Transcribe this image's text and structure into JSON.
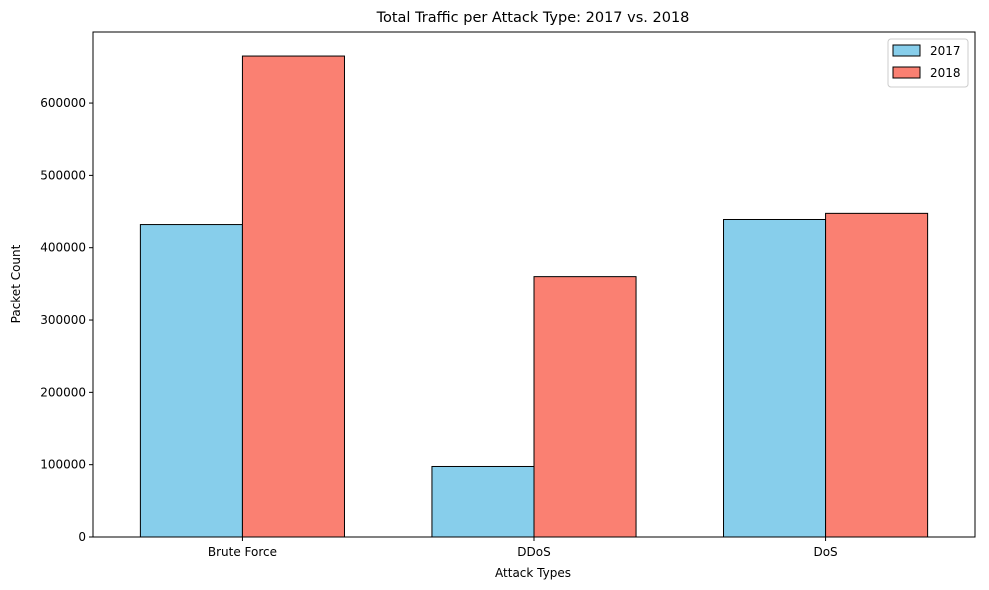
{
  "chart_data": {
    "type": "bar",
    "title": "Total Traffic per Attack Type: 2017 vs. 2018",
    "xlabel": "Attack Types",
    "ylabel": "Packet Count",
    "categories": [
      "Brute Force",
      "DDoS",
      "DoS"
    ],
    "series": [
      {
        "name": "2017",
        "color": "#87ceeb",
        "values": [
          432000,
          97500,
          439000
        ]
      },
      {
        "name": "2018",
        "color": "#fa8072",
        "values": [
          665000,
          360000,
          447500
        ]
      }
    ],
    "ylim": [
      0,
      698250
    ],
    "yticks": [
      0,
      100000,
      200000,
      300000,
      400000,
      500000,
      600000
    ],
    "ytick_labels": [
      "0",
      "100000",
      "200000",
      "300000",
      "400000",
      "500000",
      "600000"
    ],
    "grid": false,
    "legend_position": "top-right"
  }
}
